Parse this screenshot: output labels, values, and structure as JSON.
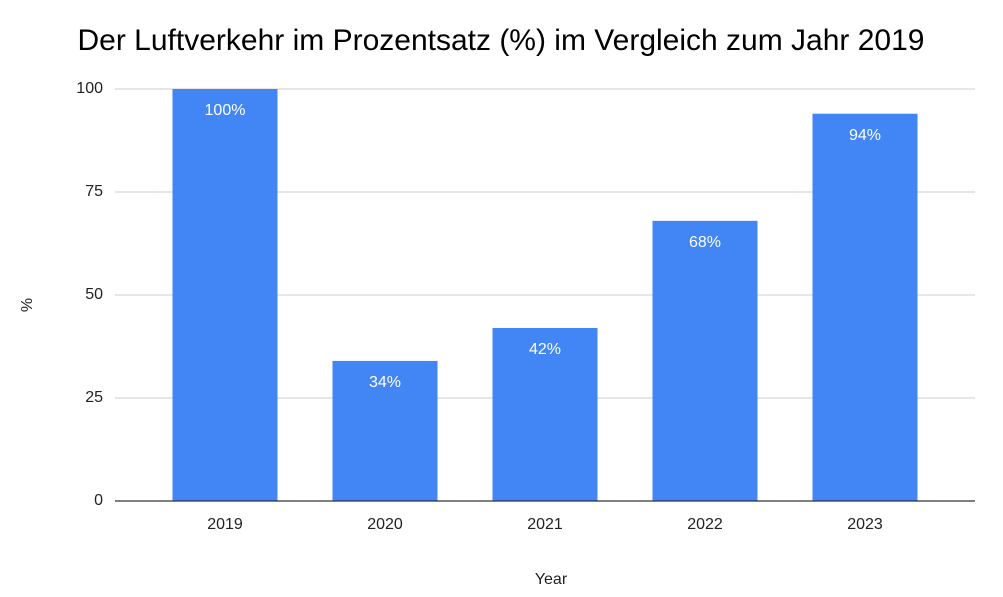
{
  "chart_data": {
    "type": "bar",
    "title": "Der Luftverkehr im Prozentsatz (%) im Vergleich zum Jahr 2019",
    "x_label": "Year",
    "y_label": "%",
    "categories": [
      "2019",
      "2020",
      "2021",
      "2022",
      "2023"
    ],
    "values": [
      100,
      34,
      42,
      68,
      94
    ],
    "value_labels": [
      "100%",
      "34%",
      "42%",
      "68%",
      "94%"
    ],
    "color": "#4285f4",
    "ylim": [
      0,
      100
    ],
    "yticks": [
      0,
      25,
      50,
      75,
      100
    ],
    "grid": true
  }
}
